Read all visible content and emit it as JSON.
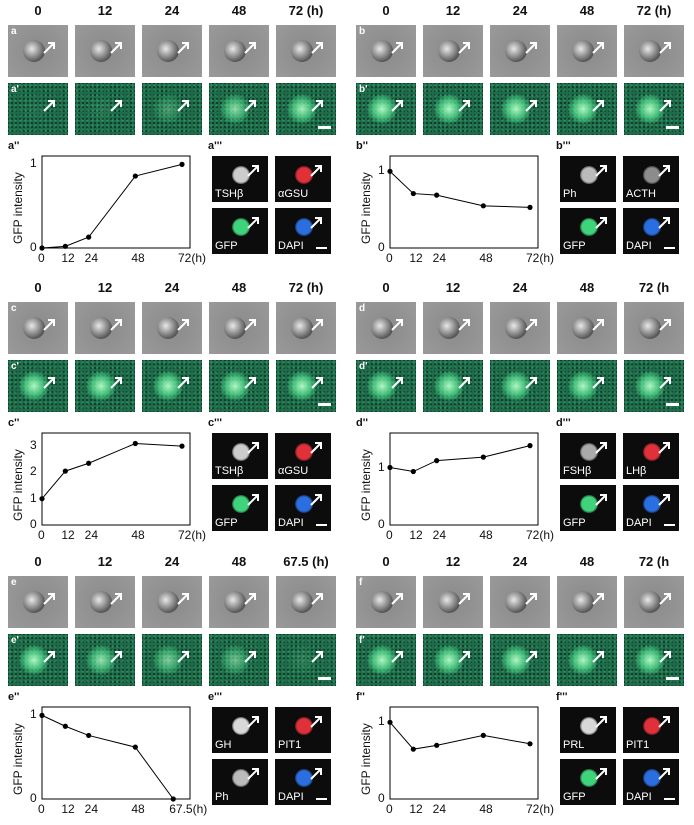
{
  "panels": [
    {
      "id": "a",
      "hdr": [
        "0",
        "12",
        "24",
        "48",
        "72 (h)"
      ],
      "row1": "a",
      "row2": "a'",
      "plotLabel": "a''",
      "microLabel": "a'''",
      "micro": [
        "TSHβ",
        "αGSU",
        "GFP",
        "DAPI"
      ]
    },
    {
      "id": "b",
      "hdr": [
        "0",
        "12",
        "24",
        "48",
        "72 (h)"
      ],
      "row1": "b",
      "row2": "b'",
      "plotLabel": "b''",
      "microLabel": "b'''",
      "micro": [
        "Ph",
        "ACTH",
        "GFP",
        "DAPI"
      ]
    },
    {
      "id": "c",
      "hdr": [
        "0",
        "12",
        "24",
        "48",
        "72 (h)"
      ],
      "row1": "c",
      "row2": "c'",
      "plotLabel": "c''",
      "microLabel": "c'''",
      "micro": [
        "TSHβ",
        "αGSU",
        "GFP",
        "DAPI"
      ]
    },
    {
      "id": "d",
      "hdr": [
        "0",
        "12",
        "24",
        "48",
        "72 (h"
      ],
      "row1": "d",
      "row2": "d'",
      "plotLabel": "d''",
      "microLabel": "d'''",
      "micro": [
        "FSHβ",
        "LHβ",
        "GFP",
        "DAPI"
      ]
    },
    {
      "id": "e",
      "hdr": [
        "0",
        "12",
        "24",
        "48",
        "67.5 (h)"
      ],
      "row1": "e",
      "row2": "e'",
      "plotLabel": "e''",
      "microLabel": "e'''",
      "micro": [
        "GH",
        "PIT1",
        "Ph",
        "DAPI"
      ]
    },
    {
      "id": "f",
      "hdr": [
        "0",
        "12",
        "24",
        "48",
        "72 (h"
      ],
      "row1": "f",
      "row2": "f'",
      "plotLabel": "f''",
      "microLabel": "f'''",
      "micro": [
        "PRL",
        "PIT1",
        "GFP",
        "DAPI"
      ]
    }
  ],
  "ylabel": "GFP intensity",
  "chart_data": [
    {
      "type": "line",
      "panel": "a''",
      "x": [
        0,
        12,
        24,
        48,
        72
      ],
      "y": [
        0,
        0.02,
        0.13,
        0.86,
        1.0
      ],
      "xticks": [
        "0",
        "12",
        "24",
        "48",
        "72(h)"
      ],
      "yticks": [
        "0",
        "1"
      ],
      "ylim": [
        0,
        1.1
      ],
      "ylabel": "GFP intensity"
    },
    {
      "type": "line",
      "panel": "b''",
      "x": [
        0,
        12,
        24,
        48,
        72
      ],
      "y": [
        1.0,
        0.71,
        0.69,
        0.55,
        0.53
      ],
      "xticks": [
        "0",
        "12",
        "24",
        "48",
        "72(h)"
      ],
      "yticks": [
        "0",
        "1"
      ],
      "ylim": [
        0,
        1.2
      ],
      "ylabel": "GFP intensity"
    },
    {
      "type": "line",
      "panel": "c''",
      "x": [
        0,
        12,
        24,
        48,
        72
      ],
      "y": [
        1.0,
        2.05,
        2.35,
        3.1,
        3.0
      ],
      "xticks": [
        "0",
        "12",
        "24",
        "48",
        "72(h)"
      ],
      "yticks": [
        "0",
        "1",
        "2",
        "3"
      ],
      "ylim": [
        0,
        3.5
      ],
      "ylabel": "GFP intensity"
    },
    {
      "type": "line",
      "panel": "d''",
      "x": [
        0,
        12,
        24,
        48,
        72
      ],
      "y": [
        1.0,
        0.93,
        1.12,
        1.18,
        1.38
      ],
      "xticks": [
        "0",
        "12",
        "24",
        "48",
        "72(h)"
      ],
      "yticks": [
        "0",
        "1"
      ],
      "ylim": [
        0,
        1.6
      ],
      "ylabel": "GFP intensity"
    },
    {
      "type": "line",
      "panel": "e''",
      "x": [
        0,
        12,
        24,
        48,
        67.5
      ],
      "y": [
        1.0,
        0.87,
        0.76,
        0.62,
        0.0
      ],
      "xticks": [
        "0",
        "12",
        "24",
        "48",
        "67.5(h)"
      ],
      "yticks": [
        "0",
        "1"
      ],
      "ylim": [
        0,
        1.1
      ],
      "ylabel": "GFP intensity"
    },
    {
      "type": "line",
      "panel": "f''",
      "x": [
        0,
        12,
        24,
        48,
        72
      ],
      "y": [
        1.0,
        0.65,
        0.7,
        0.83,
        0.72
      ],
      "xticks": [
        "0",
        "12",
        "24",
        "48",
        "72(h)"
      ],
      "yticks": [
        "0",
        "1"
      ],
      "ylim": [
        0,
        1.2
      ],
      "ylabel": "GFP intensity"
    }
  ]
}
